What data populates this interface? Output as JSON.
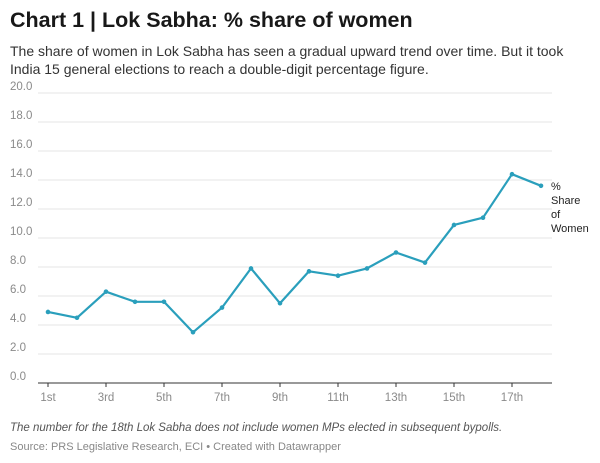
{
  "title": "Chart 1 | Lok Sabha: % share of women",
  "subtitle": "The share of women in Lok Sabha has seen a gradual upward trend over time. But it took India 15 general elections to reach a double-digit percentage figure.",
  "note": "The number for the 18th Lok Sabha does not include women MPs elected in subsequent bypolls.",
  "source": "Source: PRS Legislative Research, ECI • Created with Datawrapper",
  "colors": {
    "line": "#2a9fbc",
    "grid": "#e6e6e6",
    "axis": "#333333"
  },
  "chart_data": {
    "type": "line",
    "x": [
      "1st",
      "2nd",
      "3rd",
      "4th",
      "5th",
      "6th",
      "7th",
      "8th",
      "9th",
      "10th",
      "11th",
      "12th",
      "13th",
      "14th",
      "15th",
      "16th",
      "17th",
      "18th"
    ],
    "x_tick_labels": [
      "1st",
      "3rd",
      "5th",
      "7th",
      "9th",
      "11th",
      "13th",
      "15th",
      "17th"
    ],
    "y_tick_labels": [
      "0.0",
      "2.0",
      "4.0",
      "6.0",
      "8.0",
      "10.0",
      "12.0",
      "14.0",
      "16.0",
      "18.0",
      "20.0"
    ],
    "ylim": [
      0,
      20
    ],
    "grid": true,
    "series": [
      {
        "name": "% Share of Women",
        "values": [
          4.9,
          4.5,
          6.3,
          5.6,
          5.6,
          3.5,
          5.2,
          7.9,
          5.5,
          7.7,
          7.4,
          7.9,
          9.0,
          8.3,
          10.9,
          11.4,
          14.4,
          13.6
        ]
      }
    ],
    "series_label_lines": [
      "%",
      "Share",
      "of",
      "Women"
    ]
  }
}
